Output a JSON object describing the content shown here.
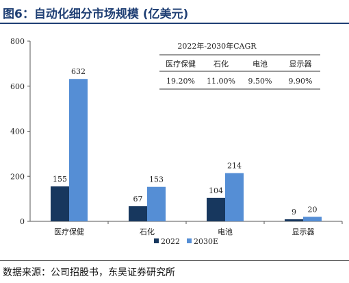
{
  "header": {
    "title": "图6：自动化细分市场规模 (亿美元)"
  },
  "footer": {
    "source": "数据来源：公司招股书，东吴证券研究所"
  },
  "cagr_table": {
    "title": "2022年-2030年CAGR",
    "headers": [
      "医疗保健",
      "石化",
      "电池",
      "显示器"
    ],
    "values": [
      "19.20%",
      "11.00%",
      "9.50%",
      "9.90%"
    ]
  },
  "colors": {
    "series_2022": "#17375e",
    "series_2030": "#558ed5"
  },
  "chart_data": {
    "type": "bar",
    "categories": [
      "医疗保健",
      "石化",
      "电池",
      "显示器"
    ],
    "series": [
      {
        "name": "2022",
        "values": [
          155,
          67,
          104,
          9
        ]
      },
      {
        "name": "2030E",
        "values": [
          632,
          153,
          214,
          20
        ]
      }
    ],
    "ylim": [
      0,
      800
    ],
    "yticks": [
      0,
      200,
      400,
      600,
      800
    ],
    "legend": "bottom",
    "grid": false
  }
}
